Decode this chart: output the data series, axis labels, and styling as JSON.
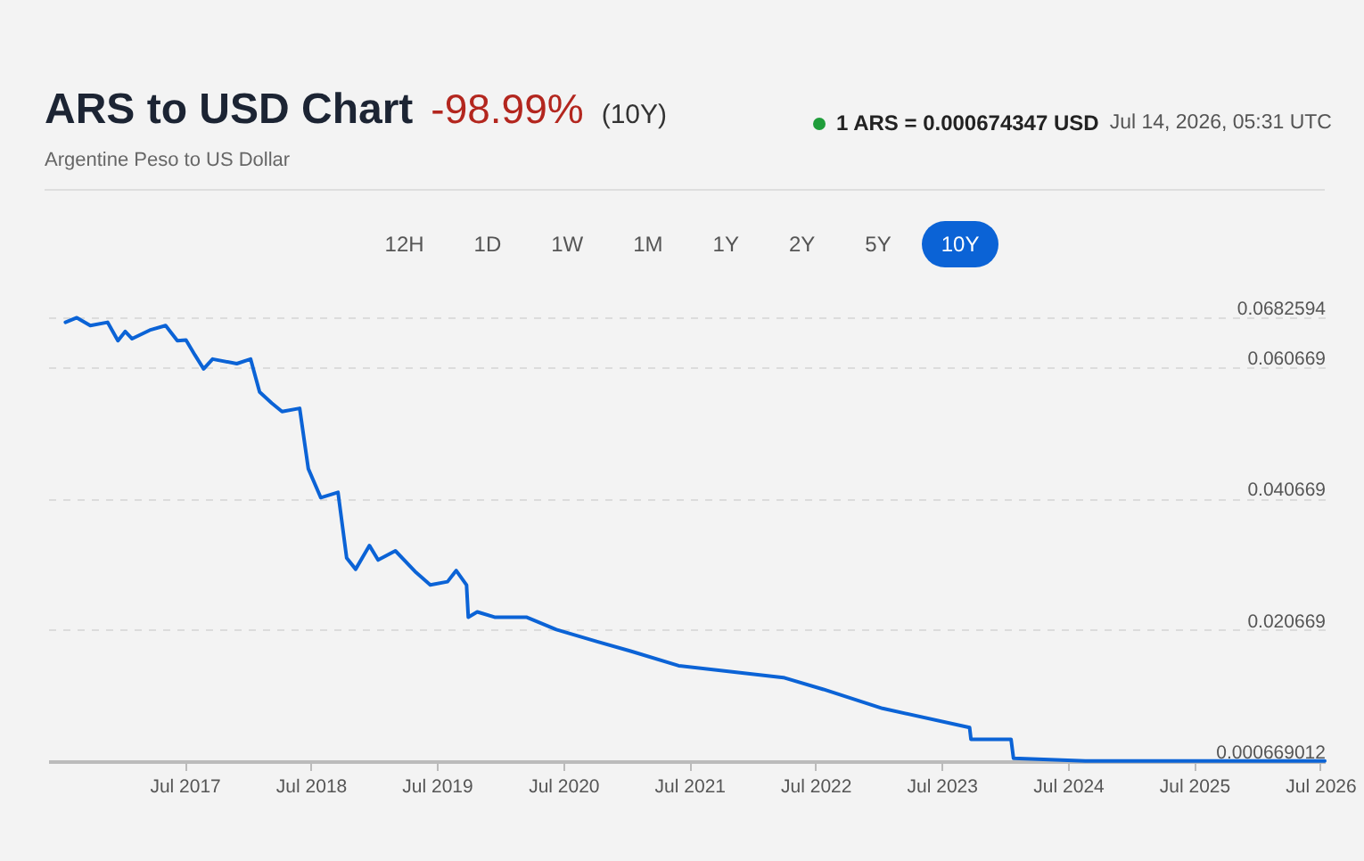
{
  "chart_data": {
    "type": "line",
    "title": "ARS to USD Chart",
    "subtitle": "Argentine Peso to US Dollar",
    "annotations": [
      "-98.99%",
      "(10Y)",
      "1 ARS = 0.000674347 USD",
      "Jul 14, 2026, 05:31 UTC",
      "12H",
      "1D",
      "1W",
      "1M",
      "1Y",
      "2Y",
      "5Y",
      "10Y"
    ],
    "x": [
      "2016-07-21",
      "2016-08-23",
      "2016-10-01",
      "2016-11-20",
      "2016-12-20",
      "2017-01-10",
      "2017-01-30",
      "2017-03-22",
      "2017-05-07",
      "2017-06-10",
      "2017-07-05",
      "2017-07-31",
      "2017-08-25",
      "2017-09-20",
      "2017-11-29",
      "2018-01-08",
      "2018-02-03",
      "2018-03-10",
      "2018-04-09",
      "2018-05-30",
      "2018-06-24",
      "2018-07-30",
      "2018-09-18",
      "2018-10-13",
      "2018-11-08",
      "2018-12-18",
      "2019-01-12",
      "2019-03-03",
      "2019-05-02",
      "2019-06-12",
      "2019-08-01",
      "2019-08-26",
      "2019-09-25",
      "2019-09-30",
      "2019-10-26",
      "2019-12-15",
      "2020-03-16",
      "2020-06-11",
      "2020-10-05",
      "2021-01-14",
      "2021-05-31",
      "2022-03-30",
      "2022-07-24",
      "2023-01-11",
      "2023-09-20",
      "2023-09-24",
      "2024-01-18",
      "2024-01-25",
      "2024-08-20",
      "2025-07-24",
      "2026-07-14"
    ],
    "series": [
      {
        "color": "#0b63d6",
        "values": [
          0.0675,
          0.0682,
          0.067,
          0.0675,
          0.0647,
          0.0661,
          0.065,
          0.0663,
          0.067,
          0.0647,
          0.0648,
          0.0625,
          0.0604,
          0.0619,
          0.0612,
          0.0619,
          0.0569,
          0.0552,
          0.0539,
          0.0544,
          0.0452,
          0.0408,
          0.0416,
          0.0316,
          0.0299,
          0.0335,
          0.0313,
          0.0327,
          0.0294,
          0.0275,
          0.028,
          0.0297,
          0.0275,
          0.0226,
          0.0234,
          0.0226,
          0.0226,
          0.0207,
          0.0189,
          0.0174,
          0.0152,
          0.0134,
          0.0116,
          0.0087,
          0.0058,
          0.004,
          0.004,
          0.0011,
          0.0007,
          0.0007,
          0.0007
        ]
      }
    ],
    "xlim": [
      "2016-06-01",
      "2026-07-14"
    ],
    "xticks": [
      {
        "value": "2017-07-01",
        "label": "Jul 2017"
      },
      {
        "value": "2018-07-01",
        "label": "Jul 2018"
      },
      {
        "value": "2019-07-01",
        "label": "Jul 2019"
      },
      {
        "value": "2020-07-01",
        "label": "Jul 2020"
      },
      {
        "value": "2021-07-01",
        "label": "Jul 2021"
      },
      {
        "value": "2022-07-01",
        "label": "Jul 2022"
      },
      {
        "value": "2023-07-01",
        "label": "Jul 2023"
      },
      {
        "value": "2024-07-01",
        "label": "Jul 2024"
      },
      {
        "value": "2025-07-01",
        "label": "Jul 2025"
      },
      {
        "value": "2026-07-01",
        "label": "Jul 2026"
      }
    ],
    "ylim": [
      0.000669012,
      0.0682594
    ],
    "yticks": [
      0.0682594,
      0.060669,
      0.040669,
      0.020669,
      0.000669012
    ],
    "grid": "y"
  }
}
